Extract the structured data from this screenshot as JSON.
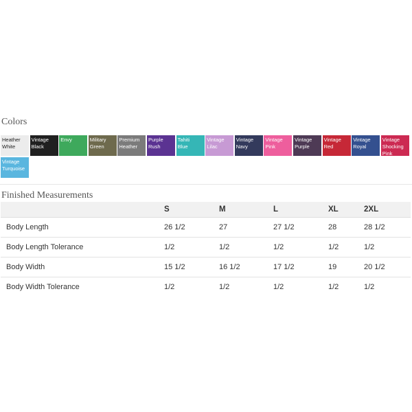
{
  "colors": {
    "heading": "Colors",
    "swatches": [
      {
        "label": "Heather\nWhite",
        "color": "#ececec",
        "text": "#222222"
      },
      {
        "label": "Vintage\nBlack",
        "color": "#202020",
        "text": "#ffffff"
      },
      {
        "label": "Envy",
        "color": "#3ea95c",
        "text": "#ffffff"
      },
      {
        "label": "Military\nGreen",
        "color": "#6e6a4d",
        "text": "#ffffff"
      },
      {
        "label": "Premium\nHeather",
        "color": "#7b7b7b",
        "text": "#ffffff"
      },
      {
        "label": "Purple\nRush",
        "color": "#5b3392",
        "text": "#ffffff"
      },
      {
        "label": "Tahiti\nBlue",
        "color": "#35b6b6",
        "text": "#ffffff"
      },
      {
        "label": "Vintage\nLilac",
        "color": "#c79ad4",
        "text": "#ffffff"
      },
      {
        "label": "Vintage\nNavy",
        "color": "#333a5c",
        "text": "#ffffff"
      },
      {
        "label": "Vintage\nPink",
        "color": "#ee5e9d",
        "text": "#ffffff"
      },
      {
        "label": "Vintage\nPurple",
        "color": "#4e3a55",
        "text": "#ffffff"
      },
      {
        "label": "Vintage\nRed",
        "color": "#c62837",
        "text": "#ffffff"
      },
      {
        "label": "Vintage\nRoyal",
        "color": "#34508f",
        "text": "#ffffff"
      },
      {
        "label": "Vintage\nShocking\nPink",
        "color": "#cc2a52",
        "text": "#ffffff"
      },
      {
        "label": "Vintage\nTurquoise",
        "color": "#5ab6df",
        "text": "#ffffff"
      }
    ]
  },
  "measurements": {
    "heading": "Finished Measurements",
    "sizes": [
      "S",
      "M",
      "L",
      "XL",
      "2XL"
    ],
    "rows": [
      {
        "label": "Body Length",
        "values": [
          "26 1/2",
          "27",
          "27 1/2",
          "28",
          "28 1/2"
        ]
      },
      {
        "label": "Body Length Tolerance",
        "values": [
          "1/2",
          "1/2",
          "1/2",
          "1/2",
          "1/2"
        ]
      },
      {
        "label": "Body Width",
        "values": [
          "15 1/2",
          "16 1/2",
          "17 1/2",
          "19",
          "20 1/2"
        ]
      },
      {
        "label": "Body Width Tolerance",
        "values": [
          "1/2",
          "1/2",
          "1/2",
          "1/2",
          "1/2"
        ]
      }
    ]
  }
}
